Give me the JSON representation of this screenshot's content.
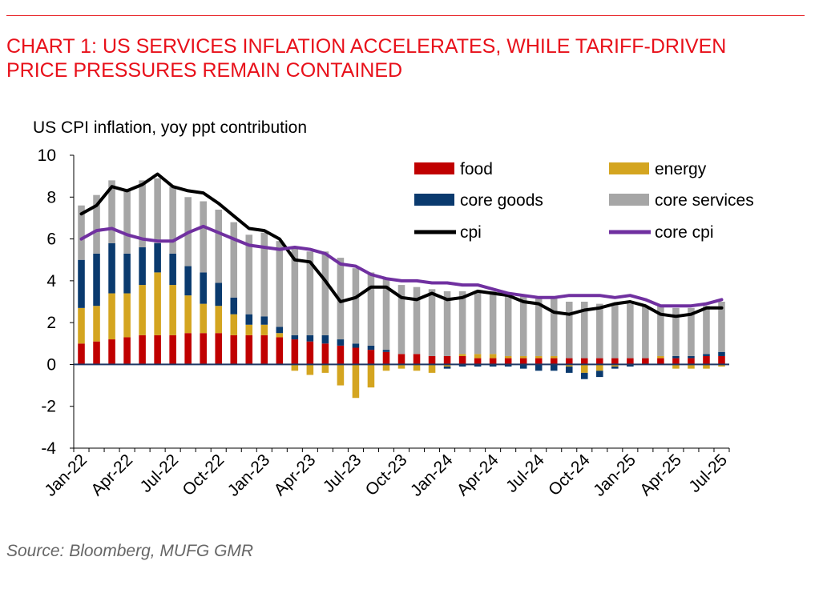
{
  "title_line1": "CHART 1: US SERVICES INFLATION ACCELERATES, WHILE TARIFF-DRIVEN",
  "title_line2": "PRICE PRESSURES REMAIN CONTAINED",
  "source": "Source: Bloomberg, MUFG GMR",
  "colors": {
    "title": "#e8101a",
    "food": "#c00000",
    "energy": "#d4a520",
    "core_goods": "#0a3a6e",
    "core_services": "#a6a6a6",
    "cpi": "#000000",
    "core_cpi": "#7030a0",
    "zero_line": "#1f3864"
  },
  "chart_data": {
    "type": "bar",
    "stacked": true,
    "ylabel": "US CPI inflation, yoy ppt contribution",
    "ylim": [
      -4,
      10
    ],
    "yticks": [
      -4,
      -2,
      0,
      2,
      4,
      6,
      8,
      10
    ],
    "x_tick_labels": [
      "Jan-22",
      "Apr-22",
      "Jul-22",
      "Oct-22",
      "Jan-23",
      "Apr-23",
      "Jul-23",
      "Oct-23",
      "Jan-24",
      "Apr-24",
      "Jul-24",
      "Oct-24",
      "Jan-25",
      "Apr-25",
      "Jul-25"
    ],
    "legend_position": "top-right",
    "categories": [
      "Jan-22",
      "Feb-22",
      "Mar-22",
      "Apr-22",
      "May-22",
      "Jun-22",
      "Jul-22",
      "Aug-22",
      "Sep-22",
      "Oct-22",
      "Nov-22",
      "Dec-22",
      "Jan-23",
      "Feb-23",
      "Mar-23",
      "Apr-23",
      "May-23",
      "Jun-23",
      "Jul-23",
      "Aug-23",
      "Sep-23",
      "Oct-23",
      "Nov-23",
      "Dec-23",
      "Jan-24",
      "Feb-24",
      "Mar-24",
      "Apr-24",
      "May-24",
      "Jun-24",
      "Jul-24",
      "Aug-24",
      "Sep-24",
      "Oct-24",
      "Nov-24",
      "Dec-24",
      "Jan-25",
      "Feb-25",
      "Mar-25",
      "Apr-25",
      "May-25",
      "Jun-25",
      "Jul-25"
    ],
    "series": [
      {
        "name": "food",
        "kind": "bar",
        "values": [
          1.0,
          1.1,
          1.2,
          1.3,
          1.4,
          1.4,
          1.4,
          1.5,
          1.5,
          1.5,
          1.4,
          1.4,
          1.4,
          1.3,
          1.2,
          1.1,
          1.0,
          0.9,
          0.8,
          0.7,
          0.6,
          0.5,
          0.5,
          0.4,
          0.4,
          0.4,
          0.3,
          0.3,
          0.3,
          0.3,
          0.3,
          0.3,
          0.3,
          0.3,
          0.3,
          0.3,
          0.3,
          0.3,
          0.3,
          0.3,
          0.3,
          0.4,
          0.4
        ]
      },
      {
        "name": "energy",
        "kind": "bar",
        "values": [
          1.7,
          1.7,
          2.2,
          2.1,
          2.4,
          3.0,
          2.4,
          1.8,
          1.4,
          1.3,
          1.0,
          0.5,
          0.5,
          0.2,
          -0.3,
          -0.5,
          -0.4,
          -1.0,
          -1.6,
          -1.1,
          -0.3,
          -0.2,
          -0.3,
          -0.4,
          -0.1,
          0.1,
          0.2,
          0.2,
          0.1,
          0.1,
          0.1,
          0.1,
          -0.1,
          -0.4,
          -0.3,
          -0.1,
          0.0,
          0.0,
          0.1,
          -0.2,
          -0.2,
          -0.2,
          -0.1
        ]
      },
      {
        "name": "core goods",
        "kind": "bar",
        "values": [
          2.3,
          2.5,
          2.4,
          1.9,
          1.8,
          1.4,
          1.5,
          1.4,
          1.5,
          1.1,
          0.8,
          0.5,
          0.4,
          0.3,
          0.2,
          0.3,
          0.4,
          0.3,
          0.2,
          0.2,
          0.1,
          0.0,
          0.0,
          0.0,
          -0.1,
          -0.1,
          -0.1,
          -0.1,
          -0.1,
          -0.2,
          -0.3,
          -0.3,
          -0.3,
          -0.3,
          -0.3,
          -0.1,
          -0.1,
          0.0,
          0.0,
          0.1,
          0.1,
          0.1,
          0.2
        ]
      },
      {
        "name": "core services",
        "kind": "bar",
        "values": [
          2.6,
          2.8,
          3.0,
          3.1,
          3.2,
          3.1,
          3.2,
          3.3,
          3.4,
          3.5,
          3.6,
          3.8,
          4.0,
          4.1,
          4.2,
          4.0,
          4.0,
          3.9,
          3.6,
          3.5,
          3.4,
          3.3,
          3.2,
          3.2,
          3.1,
          3.0,
          3.0,
          3.0,
          3.0,
          2.9,
          2.8,
          2.8,
          2.7,
          2.7,
          2.6,
          2.6,
          2.6,
          2.5,
          2.4,
          2.3,
          2.3,
          2.3,
          2.4
        ]
      },
      {
        "name": "cpi",
        "kind": "line",
        "values": [
          7.2,
          7.6,
          8.5,
          8.3,
          8.6,
          9.1,
          8.5,
          8.3,
          8.2,
          7.7,
          7.1,
          6.5,
          6.4,
          6.0,
          5.0,
          4.9,
          4.0,
          3.0,
          3.2,
          3.7,
          3.7,
          3.2,
          3.1,
          3.4,
          3.1,
          3.2,
          3.5,
          3.4,
          3.3,
          3.0,
          2.9,
          2.5,
          2.4,
          2.6,
          2.7,
          2.9,
          3.0,
          2.8,
          2.4,
          2.3,
          2.4,
          2.7,
          2.7
        ]
      },
      {
        "name": "core cpi",
        "kind": "line",
        "values": [
          6.0,
          6.4,
          6.5,
          6.2,
          6.0,
          5.9,
          5.9,
          6.3,
          6.6,
          6.3,
          6.0,
          5.7,
          5.6,
          5.5,
          5.6,
          5.5,
          5.3,
          4.8,
          4.7,
          4.3,
          4.1,
          4.0,
          4.0,
          3.9,
          3.9,
          3.8,
          3.8,
          3.6,
          3.4,
          3.3,
          3.2,
          3.2,
          3.3,
          3.3,
          3.3,
          3.2,
          3.3,
          3.1,
          2.8,
          2.8,
          2.8,
          2.9,
          3.1
        ]
      }
    ]
  }
}
